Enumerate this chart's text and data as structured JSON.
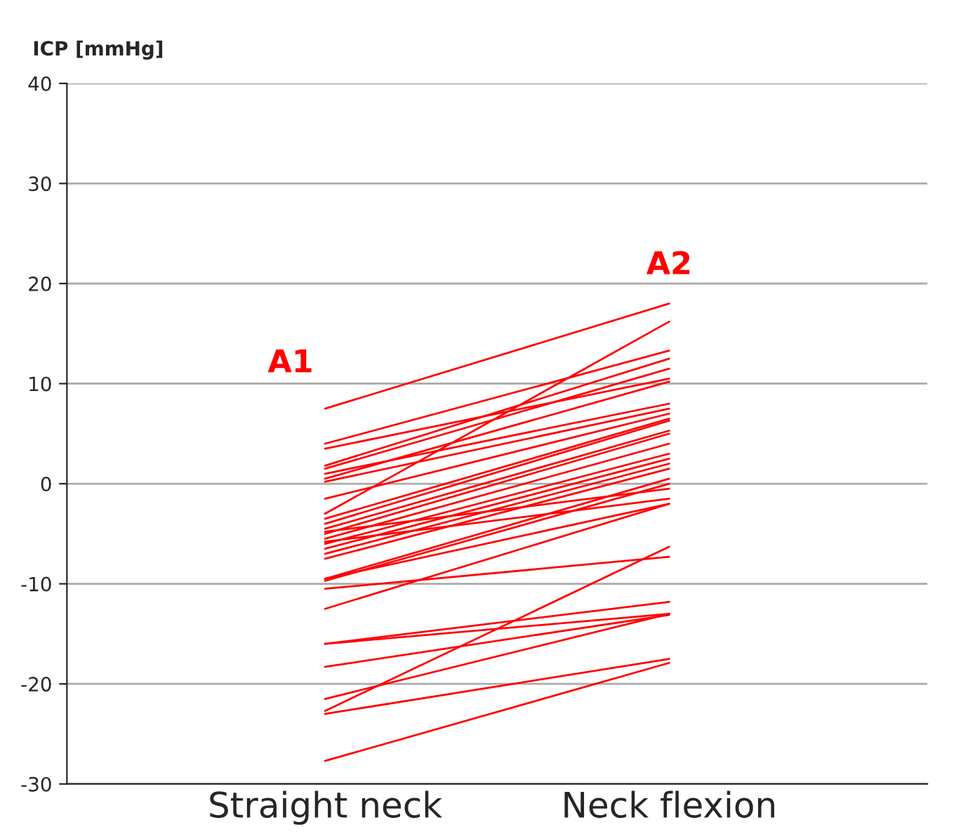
{
  "chart_data": {
    "type": "line",
    "ylabel": "ICP [mmHg]",
    "categories": [
      "Straight neck",
      "Neck flexion"
    ],
    "ylim": [
      -30,
      40
    ],
    "yticks": [
      -30,
      -20,
      -10,
      0,
      10,
      20,
      30,
      40
    ],
    "grid": "y",
    "line_style": "solid",
    "marker": "none",
    "annotations": [
      "A1",
      "A2"
    ],
    "series": [
      {
        "color": "#ff0000",
        "values": [
          7.5,
          18
        ]
      },
      {
        "color": "#ff0000",
        "values": [
          -3,
          16.2
        ]
      },
      {
        "color": "#ff0000",
        "values": [
          4,
          13.3
        ]
      },
      {
        "color": "#ff0000",
        "values": [
          3.5,
          10.5
        ]
      },
      {
        "color": "#ff0000",
        "values": [
          1.8,
          12.5
        ]
      },
      {
        "color": "#ff0000",
        "values": [
          1.5,
          11.5
        ]
      },
      {
        "color": "#ff0000",
        "values": [
          1,
          8
        ]
      },
      {
        "color": "#ff0000",
        "values": [
          0.5,
          10.2
        ]
      },
      {
        "color": "#ff0000",
        "values": [
          0.2,
          7.5
        ]
      },
      {
        "color": "#ff0000",
        "values": [
          -1.5,
          7
        ]
      },
      {
        "color": "#ff0000",
        "values": [
          -3.5,
          6.5
        ]
      },
      {
        "color": "#ff0000",
        "values": [
          -4,
          6.3
        ]
      },
      {
        "color": "#ff0000",
        "values": [
          -4.5,
          5.3
        ]
      },
      {
        "color": "#ff0000",
        "values": [
          -5,
          5
        ]
      },
      {
        "color": "#ff0000",
        "values": [
          -5.5,
          4
        ]
      },
      {
        "color": "#ff0000",
        "values": [
          -6,
          3
        ]
      },
      {
        "color": "#ff0000",
        "values": [
          -6.5,
          2.5
        ]
      },
      {
        "color": "#ff0000",
        "values": [
          -7,
          2
        ]
      },
      {
        "color": "#ff0000",
        "values": [
          -7.5,
          1.5
        ]
      },
      {
        "color": "#ff0000",
        "values": [
          -9.5,
          0.5
        ]
      },
      {
        "color": "#ff0000",
        "values": [
          -9.7,
          0
        ]
      },
      {
        "color": "#ff0000",
        "values": [
          -4.8,
          -0.5
        ]
      },
      {
        "color": "#ff0000",
        "values": [
          -5.8,
          -1.5
        ]
      },
      {
        "color": "#ff0000",
        "values": [
          -9.5,
          -2
        ]
      },
      {
        "color": "#ff0000",
        "values": [
          -12.5,
          -2
        ]
      },
      {
        "color": "#ff0000",
        "values": [
          -10.5,
          -7.3
        ]
      },
      {
        "color": "#ff0000",
        "values": [
          -22.7,
          -6.3
        ]
      },
      {
        "color": "#ff0000",
        "values": [
          -16,
          -11.8
        ]
      },
      {
        "color": "#ff0000",
        "values": [
          -16,
          -13
        ]
      },
      {
        "color": "#ff0000",
        "values": [
          -18.3,
          -13.1
        ]
      },
      {
        "color": "#ff0000",
        "values": [
          -21.5,
          -13
        ]
      },
      {
        "color": "#ff0000",
        "values": [
          -23,
          -17.5
        ]
      },
      {
        "color": "#ff0000",
        "values": [
          -27.7,
          -17.9
        ]
      }
    ]
  }
}
